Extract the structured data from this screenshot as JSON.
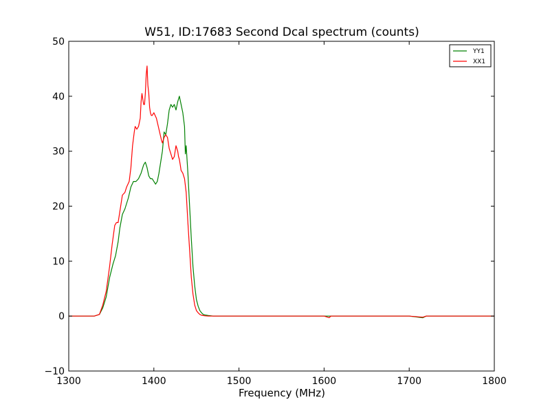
{
  "chart_data": {
    "type": "line",
    "title": "W51, ID:17683 Second Dcal spectrum (counts)",
    "xlabel": "Frequency (MHz)",
    "ylabel": "",
    "xlim": [
      1300,
      1800
    ],
    "ylim": [
      -10,
      50
    ],
    "xticks": [
      1300,
      1400,
      1500,
      1600,
      1700,
      1800
    ],
    "yticks": [
      -10,
      0,
      10,
      20,
      30,
      40,
      50
    ],
    "xtick_labels": [
      "1300",
      "1400",
      "1500",
      "1600",
      "1700",
      "1800"
    ],
    "ytick_labels": [
      "−10",
      "0",
      "10",
      "20",
      "30",
      "40",
      "50"
    ],
    "grid": false,
    "legend_position": "top-right",
    "series": [
      {
        "name": "YY1",
        "color": "#008000",
        "x": [
          1300,
          1330,
          1336,
          1340,
          1344,
          1348,
          1352,
          1355,
          1358,
          1360,
          1363,
          1366,
          1370,
          1373,
          1376,
          1379,
          1382,
          1385,
          1388,
          1390,
          1392,
          1394,
          1396,
          1398,
          1400,
          1402,
          1404,
          1406,
          1408,
          1410,
          1412,
          1414,
          1416,
          1418,
          1420,
          1422,
          1424,
          1426,
          1428,
          1430,
          1432,
          1434,
          1436,
          1437,
          1438,
          1440,
          1442,
          1444,
          1446,
          1448,
          1450,
          1452,
          1454,
          1456,
          1458,
          1460,
          1464,
          1470,
          1480,
          1500,
          1550,
          1600,
          1650,
          1700,
          1716,
          1720,
          1750,
          1800
        ],
        "y": [
          0,
          0,
          0.3,
          1.5,
          3.5,
          7,
          9.5,
          11,
          13.5,
          16,
          18.5,
          19.5,
          21.5,
          23.5,
          24.5,
          24.5,
          25,
          26,
          27.5,
          28,
          27,
          25.5,
          25,
          25,
          24.5,
          24,
          24.5,
          26,
          28,
          30,
          33.5,
          33,
          35,
          37.5,
          38.5,
          38,
          38.5,
          37.5,
          39,
          40,
          38.5,
          37,
          34.5,
          29.5,
          31,
          26,
          20,
          14,
          9,
          5.5,
          3,
          1.8,
          1,
          0.6,
          0.3,
          0.2,
          0.1,
          0,
          0,
          0,
          0,
          0,
          0,
          0,
          -0.3,
          0,
          0,
          0
        ]
      },
      {
        "name": "XX1",
        "color": "#ff0000",
        "x": [
          1300,
          1330,
          1336,
          1340,
          1344,
          1348,
          1351,
          1354,
          1356,
          1358,
          1360,
          1363,
          1366,
          1368,
          1371,
          1373,
          1375,
          1377,
          1378,
          1380,
          1382,
          1384,
          1385,
          1386,
          1387,
          1388,
          1389,
          1390,
          1391,
          1392,
          1393,
          1394,
          1395,
          1396,
          1397,
          1398,
          1400,
          1403,
          1406,
          1409,
          1410,
          1412,
          1414,
          1416,
          1418,
          1420,
          1422,
          1424,
          1426,
          1428,
          1429,
          1430,
          1431,
          1432,
          1434,
          1436,
          1438,
          1440,
          1442,
          1444,
          1446,
          1448,
          1450,
          1452,
          1454,
          1456,
          1458,
          1460,
          1464,
          1470,
          1480,
          1500,
          1550,
          1600,
          1606,
          1608,
          1650,
          1700,
          1716,
          1720,
          1750,
          1800
        ],
        "y": [
          0,
          0,
          0.3,
          2,
          4.5,
          9,
          13,
          16.5,
          17,
          17,
          19,
          22,
          22.5,
          23.5,
          24.5,
          27,
          31,
          33.5,
          34.5,
          34,
          34.5,
          36,
          39,
          40.5,
          39.5,
          38.5,
          38.5,
          40.5,
          44,
          45.5,
          42,
          40.5,
          38,
          37,
          36.5,
          36.5,
          37,
          36,
          34,
          32,
          31.5,
          32.5,
          33,
          32.5,
          30.5,
          29.5,
          28.5,
          29,
          31,
          30,
          29,
          28.5,
          27.5,
          26.5,
          26,
          25,
          22.5,
          17,
          12,
          7,
          4,
          2,
          1,
          0.6,
          0.3,
          0.15,
          0.1,
          0.05,
          0,
          0,
          0,
          0,
          0,
          0,
          -0.3,
          0,
          0,
          0,
          -0.2,
          0,
          0,
          0
        ]
      }
    ]
  }
}
